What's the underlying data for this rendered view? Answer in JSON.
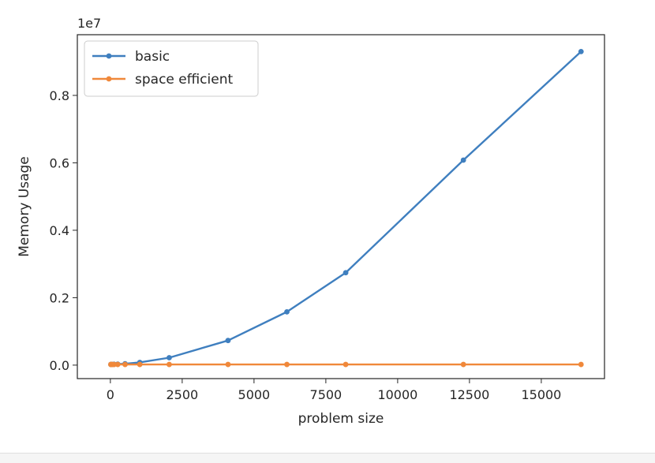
{
  "chart_data": {
    "type": "line",
    "title": "",
    "xlabel": "problem size",
    "ylabel": "Memory Usage",
    "y_offset_text": "1e7",
    "xlim": [
      -1150,
      17200
    ],
    "ylim": [
      -400000,
      9800000
    ],
    "xticks": [
      0,
      2500,
      5000,
      7500,
      10000,
      12500,
      15000
    ],
    "xtick_labels": [
      "0",
      "2500",
      "5000",
      "7500",
      "10000",
      "12500",
      "15000"
    ],
    "yticks": [
      0,
      2000000,
      4000000,
      6000000,
      8000000
    ],
    "ytick_labels": [
      "0.0",
      "0.2",
      "0.4",
      "0.6",
      "0.8"
    ],
    "grid": false,
    "legend_position": "top-left",
    "x": [
      16,
      32,
      64,
      128,
      256,
      512,
      1024,
      2048,
      4096,
      6144,
      8192,
      12288,
      16384
    ],
    "series": [
      {
        "name": "basic",
        "color": "#3f7fbf",
        "values": [
          20000,
          20000,
          21000,
          25000,
          30000,
          40000,
          80000,
          220000,
          730000,
          1580000,
          2740000,
          6080000,
          9300000
        ]
      },
      {
        "name": "space efficient",
        "color": "#f0883a",
        "values": [
          20000,
          20000,
          20000,
          20000,
          20000,
          20000,
          20000,
          20000,
          20000,
          20000,
          20000,
          20000,
          20000
        ]
      }
    ]
  }
}
